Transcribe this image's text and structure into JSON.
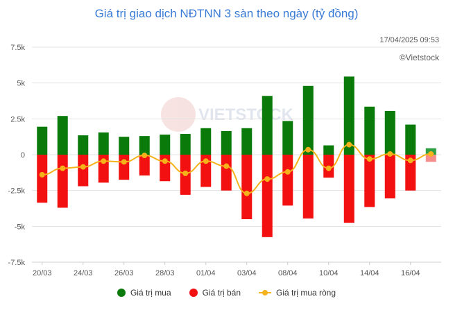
{
  "title": "Giá trị giao dịch NĐTNN 3 sàn theo ngày (tỷ đồng)",
  "timestamp": "17/04/2025 09:53",
  "source": "©Vietstock",
  "watermark": "VIETSTOCK",
  "colors": {
    "buy": "#0a7a0a",
    "sell": "#f21010",
    "net": "#f5b21a",
    "title": "#3a7bd5"
  },
  "legend": {
    "buy": "Giá trị mua",
    "sell": "Giá trị bán",
    "net": "Giá trị mua ròng"
  },
  "chart_data": {
    "type": "bar",
    "y_ticks": [
      "7.5k",
      "5k",
      "2.5k",
      "0",
      "-2.5k",
      "-5k",
      "-7.5k"
    ],
    "y_tick_values": [
      7500,
      5000,
      2500,
      0,
      -2500,
      -5000,
      -7500
    ],
    "ylim": [
      -7500,
      7500
    ],
    "x_tick_labels": [
      "20/03",
      "24/03",
      "26/03",
      "28/03",
      "01/04",
      "03/04",
      "08/04",
      "10/04",
      "14/04",
      "16/04"
    ],
    "x_tick_indices": [
      0,
      2,
      4,
      6,
      8,
      10,
      12,
      14,
      16,
      18
    ],
    "n_bars": 20,
    "series": [
      {
        "name": "Giá trị mua",
        "values": [
          1950,
          2700,
          1350,
          1550,
          1250,
          1300,
          1400,
          1450,
          1850,
          1650,
          1850,
          4100,
          2350,
          4800,
          650,
          5450,
          3350,
          3050,
          2100,
          450
        ]
      },
      {
        "name": "Giá trị bán",
        "values": [
          -3350,
          -3700,
          -2200,
          -1950,
          -1750,
          -1450,
          -1850,
          -2800,
          -2250,
          -2500,
          -4500,
          -5750,
          -3550,
          -4450,
          -1600,
          -4750,
          -3650,
          -3050,
          -2500,
          -500
        ]
      },
      {
        "name": "Giá trị mua ròng",
        "values": [
          -1400,
          -950,
          -850,
          -450,
          -500,
          -50,
          -450,
          -1300,
          -450,
          -800,
          -2700,
          -1700,
          -1200,
          350,
          -950,
          700,
          -300,
          50,
          -400,
          50
        ]
      }
    ],
    "grid": true,
    "legend_position": "bottom"
  }
}
